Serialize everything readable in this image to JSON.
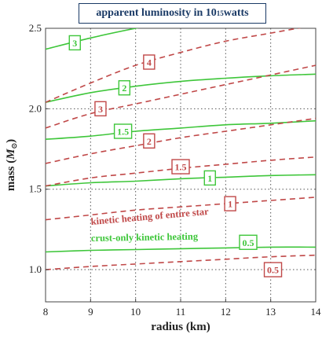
{
  "chart_data": {
    "type": "line",
    "title": {
      "pre": "apparent luminosity in 10",
      "exp": "15",
      "post": " watts"
    },
    "xlabel": "radius (km)",
    "ylabel": {
      "pre": "mass (",
      "sym": "M",
      "post": ")"
    },
    "xlim": [
      8,
      14
    ],
    "ylim": [
      0.8,
      2.5
    ],
    "xticks": [
      "8",
      "9",
      "10",
      "11",
      "12",
      "13",
      "14"
    ],
    "yticks": [
      "1.0",
      "1.5",
      "2.0",
      "2.5"
    ],
    "grid": "dotted",
    "colors": {
      "crust_only": "#3ec63a",
      "entire_star": "#c04848"
    },
    "annotations": [
      {
        "text": "kinetic heating of entire star",
        "color": "#c04848"
      },
      {
        "text": "crust-only kinetic heating",
        "color": "#3ec63a"
      }
    ],
    "series": [
      {
        "name": "0.5",
        "group": "crust_only",
        "style": "solid",
        "x": [
          8,
          9,
          10,
          11,
          12,
          13,
          14
        ],
        "y": [
          1.11,
          1.12,
          1.125,
          1.13,
          1.135,
          1.14,
          1.14
        ]
      },
      {
        "name": "1",
        "group": "crust_only",
        "style": "solid",
        "x": [
          8,
          9,
          10,
          11,
          12,
          13,
          14
        ],
        "y": [
          1.52,
          1.54,
          1.55,
          1.565,
          1.575,
          1.585,
          1.59
        ]
      },
      {
        "name": "1.5",
        "group": "crust_only",
        "style": "solid",
        "x": [
          8,
          9,
          10,
          11,
          12,
          13,
          14
        ],
        "y": [
          1.81,
          1.83,
          1.86,
          1.88,
          1.9,
          1.91,
          1.925
        ]
      },
      {
        "name": "2",
        "group": "crust_only",
        "style": "solid",
        "x": [
          8,
          9,
          10,
          11,
          12,
          13,
          14
        ],
        "y": [
          2.04,
          2.1,
          2.14,
          2.17,
          2.19,
          2.205,
          2.215
        ]
      },
      {
        "name": "3",
        "group": "crust_only",
        "style": "solid",
        "x": [
          8,
          9,
          10,
          11
        ],
        "y": [
          2.37,
          2.44,
          2.5,
          2.55
        ]
      },
      {
        "name": "0.5",
        "group": "entire_star",
        "style": "dashed",
        "x": [
          8,
          9,
          10,
          11,
          12,
          13,
          14
        ],
        "y": [
          1.0,
          1.02,
          1.035,
          1.05,
          1.065,
          1.08,
          1.09
        ]
      },
      {
        "name": "1",
        "group": "entire_star",
        "style": "dashed",
        "x": [
          8,
          9,
          10,
          11,
          12,
          13,
          14
        ],
        "y": [
          1.31,
          1.34,
          1.37,
          1.39,
          1.41,
          1.43,
          1.45
        ]
      },
      {
        "name": "1.5",
        "group": "entire_star",
        "style": "dashed",
        "x": [
          8,
          9,
          10,
          11,
          12,
          13,
          14
        ],
        "y": [
          1.52,
          1.57,
          1.6,
          1.63,
          1.655,
          1.68,
          1.7
        ]
      },
      {
        "name": "2",
        "group": "entire_star",
        "style": "dashed",
        "x": [
          8,
          9,
          10,
          11,
          12,
          13,
          14
        ],
        "y": [
          1.66,
          1.72,
          1.77,
          1.82,
          1.86,
          1.9,
          1.94
        ]
      },
      {
        "name": "3",
        "group": "entire_star",
        "style": "dashed",
        "x": [
          8,
          9,
          10,
          11,
          12,
          13,
          14
        ],
        "y": [
          1.88,
          1.97,
          2.03,
          2.09,
          2.15,
          2.21,
          2.27
        ]
      },
      {
        "name": "4",
        "group": "entire_star",
        "style": "dashed",
        "x": [
          8,
          9,
          10,
          11,
          12,
          13,
          14
        ],
        "y": [
          2.04,
          2.16,
          2.27,
          2.35,
          2.42,
          2.47,
          2.52
        ]
      }
    ],
    "curve_labels": [
      {
        "text": "3",
        "group": "crust_only",
        "x": 8.65,
        "y": 2.41
      },
      {
        "text": "2",
        "group": "crust_only",
        "x": 9.75,
        "y": 2.13
      },
      {
        "text": "1.5",
        "group": "crust_only",
        "x": 9.72,
        "y": 1.86
      },
      {
        "text": "1",
        "group": "crust_only",
        "x": 11.65,
        "y": 1.57
      },
      {
        "text": "0.5",
        "group": "crust_only",
        "x": 12.5,
        "y": 1.17
      },
      {
        "text": "4",
        "group": "entire_star",
        "x": 10.3,
        "y": 2.29
      },
      {
        "text": "3",
        "group": "entire_star",
        "x": 9.22,
        "y": 2.0
      },
      {
        "text": "2",
        "group": "entire_star",
        "x": 10.3,
        "y": 1.8
      },
      {
        "text": "1.5",
        "group": "entire_star",
        "x": 11.0,
        "y": 1.64
      },
      {
        "text": "1",
        "group": "entire_star",
        "x": 12.1,
        "y": 1.41
      },
      {
        "text": "0.5",
        "group": "entire_star",
        "x": 13.05,
        "y": 1.0
      }
    ]
  }
}
